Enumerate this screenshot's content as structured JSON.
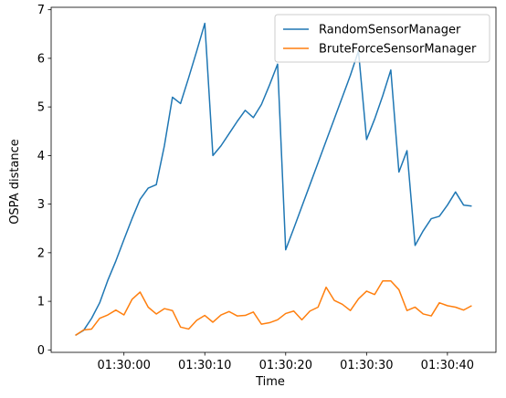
{
  "chart_data": {
    "type": "line",
    "xlabel": "Time",
    "ylabel": "OSPA distance",
    "x_unit": "seconds relative to 01:30:00",
    "xlim": [
      -9,
      46
    ],
    "ylim": [
      -0.05,
      7.05
    ],
    "xticks": [
      {
        "value": 0,
        "label": "01:30:00"
      },
      {
        "value": 10,
        "label": "01:30:10"
      },
      {
        "value": 20,
        "label": "01:30:20"
      },
      {
        "value": 30,
        "label": "01:30:30"
      },
      {
        "value": 40,
        "label": "01:30:40"
      }
    ],
    "yticks": [
      0,
      1,
      2,
      3,
      4,
      5,
      6,
      7
    ],
    "grid": false,
    "legend_position": "top-right",
    "series": [
      {
        "name": "RandomSensorManager",
        "color": "#1f77b4",
        "x": [
          -6,
          -5,
          -4,
          -3,
          -2,
          -1,
          0,
          1,
          2,
          3,
          4,
          5,
          6,
          7,
          8,
          9,
          10,
          11,
          12,
          13,
          14,
          15,
          16,
          17,
          18,
          19,
          20,
          21,
          22,
          23,
          24,
          25,
          26,
          27,
          28,
          29,
          30,
          31,
          32,
          33,
          34,
          35,
          36,
          37,
          38,
          39,
          40,
          41,
          42,
          43
        ],
        "y": [
          0.3,
          0.4,
          0.65,
          0.97,
          1.43,
          1.83,
          2.27,
          2.7,
          3.1,
          3.33,
          3.4,
          4.2,
          5.2,
          5.07,
          5.6,
          6.15,
          6.72,
          4.0,
          4.2,
          4.45,
          4.7,
          4.93,
          4.78,
          5.05,
          5.45,
          5.88,
          2.06,
          2.5,
          2.95,
          3.4,
          3.85,
          4.3,
          4.75,
          5.2,
          5.65,
          6.15,
          4.33,
          4.75,
          5.23,
          5.76,
          3.66,
          4.1,
          2.15,
          2.45,
          2.7,
          2.75,
          2.98,
          3.25,
          2.98,
          2.96
        ]
      },
      {
        "name": "BruteForceSensorManager",
        "color": "#ff7f0e",
        "x": [
          -6,
          -5,
          -4,
          -3,
          -2,
          -1,
          0,
          1,
          2,
          3,
          4,
          5,
          6,
          7,
          8,
          9,
          10,
          11,
          12,
          13,
          14,
          15,
          16,
          17,
          18,
          19,
          20,
          21,
          22,
          23,
          24,
          25,
          26,
          27,
          28,
          29,
          30,
          31,
          32,
          33,
          34,
          35,
          36,
          37,
          38,
          39,
          40,
          41,
          42,
          43
        ],
        "y": [
          0.3,
          0.41,
          0.43,
          0.65,
          0.72,
          0.82,
          0.72,
          1.04,
          1.19,
          0.88,
          0.74,
          0.85,
          0.81,
          0.47,
          0.43,
          0.61,
          0.71,
          0.57,
          0.72,
          0.79,
          0.7,
          0.71,
          0.78,
          0.53,
          0.56,
          0.62,
          0.75,
          0.8,
          0.62,
          0.8,
          0.88,
          1.29,
          1.02,
          0.94,
          0.81,
          1.05,
          1.21,
          1.14,
          1.42,
          1.42,
          1.24,
          0.81,
          0.88,
          0.74,
          0.7,
          0.97,
          0.91,
          0.88,
          0.82,
          0.91
        ]
      }
    ]
  }
}
